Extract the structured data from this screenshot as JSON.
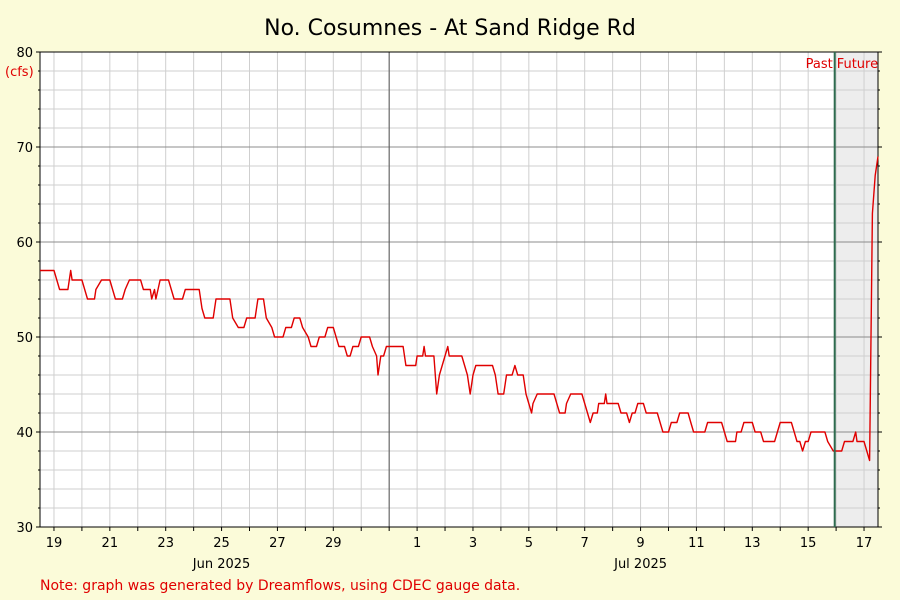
{
  "chart_data": {
    "type": "line",
    "title": "No. Cosumnes - At Sand Ridge Rd",
    "ylabel": "(cfs)",
    "ylim": [
      30,
      80
    ],
    "yticks": [
      "30",
      "40",
      "50",
      "60",
      "70",
      "80"
    ],
    "xlim": [
      18.5,
      48.5
    ],
    "x_day_ticks": [
      {
        "x": 19,
        "label": "19"
      },
      {
        "x": 21,
        "label": "21"
      },
      {
        "x": 23,
        "label": "23"
      },
      {
        "x": 25,
        "label": "25"
      },
      {
        "x": 27,
        "label": "27"
      },
      {
        "x": 29,
        "label": "29"
      },
      {
        "x": 32,
        "label": "1"
      },
      {
        "x": 34,
        "label": "3"
      },
      {
        "x": 36,
        "label": "5"
      },
      {
        "x": 38,
        "label": "7"
      },
      {
        "x": 40,
        "label": "9"
      },
      {
        "x": 42,
        "label": "11"
      },
      {
        "x": 44,
        "label": "13"
      },
      {
        "x": 46,
        "label": "15"
      },
      {
        "x": 48,
        "label": "17"
      }
    ],
    "month_labels": [
      {
        "x": 25,
        "label": "Jun 2025"
      },
      {
        "x": 40,
        "label": "Jul 2025"
      }
    ],
    "month_divider_x": 31,
    "now_x": 46.95,
    "past_label": "Past",
    "future_label": "Future",
    "grid": true,
    "series": [
      {
        "color": "#e00000",
        "points": [
          [
            18.5,
            57
          ],
          [
            19.0,
            57
          ],
          [
            19.1,
            56
          ],
          [
            19.2,
            55
          ],
          [
            19.5,
            55
          ],
          [
            19.55,
            56
          ],
          [
            19.6,
            57
          ],
          [
            19.65,
            56
          ],
          [
            20.0,
            56
          ],
          [
            20.1,
            55
          ],
          [
            20.2,
            54
          ],
          [
            20.45,
            54
          ],
          [
            20.5,
            55
          ],
          [
            20.7,
            56
          ],
          [
            21.0,
            56
          ],
          [
            21.1,
            55
          ],
          [
            21.2,
            54
          ],
          [
            21.45,
            54
          ],
          [
            21.55,
            55
          ],
          [
            21.7,
            56
          ],
          [
            22.1,
            56
          ],
          [
            22.2,
            55
          ],
          [
            22.45,
            55
          ],
          [
            22.5,
            54
          ],
          [
            22.6,
            55
          ],
          [
            22.65,
            54
          ],
          [
            22.8,
            56
          ],
          [
            23.1,
            56
          ],
          [
            23.2,
            55
          ],
          [
            23.3,
            54
          ],
          [
            23.6,
            54
          ],
          [
            23.7,
            55
          ],
          [
            24.2,
            55
          ],
          [
            24.3,
            53
          ],
          [
            24.4,
            52
          ],
          [
            24.7,
            52
          ],
          [
            24.8,
            54
          ],
          [
            25.3,
            54
          ],
          [
            25.4,
            52
          ],
          [
            25.6,
            51
          ],
          [
            25.8,
            51
          ],
          [
            25.9,
            52
          ],
          [
            26.2,
            52
          ],
          [
            26.3,
            54
          ],
          [
            26.5,
            54
          ],
          [
            26.6,
            52
          ],
          [
            26.8,
            51
          ],
          [
            26.9,
            50
          ],
          [
            27.2,
            50
          ],
          [
            27.3,
            51
          ],
          [
            27.5,
            51
          ],
          [
            27.6,
            52
          ],
          [
            27.8,
            52
          ],
          [
            27.9,
            51
          ],
          [
            28.1,
            50
          ],
          [
            28.2,
            49
          ],
          [
            28.4,
            49
          ],
          [
            28.5,
            50
          ],
          [
            28.7,
            50
          ],
          [
            28.8,
            51
          ],
          [
            29.0,
            51
          ],
          [
            29.1,
            50
          ],
          [
            29.2,
            49
          ],
          [
            29.4,
            49
          ],
          [
            29.5,
            48
          ],
          [
            29.6,
            48
          ],
          [
            29.7,
            49
          ],
          [
            29.9,
            49
          ],
          [
            30.0,
            50
          ],
          [
            30.3,
            50
          ],
          [
            30.4,
            49
          ],
          [
            30.55,
            48
          ],
          [
            30.6,
            46
          ],
          [
            30.7,
            48
          ],
          [
            30.8,
            48
          ],
          [
            30.9,
            49
          ],
          [
            31.5,
            49
          ],
          [
            31.55,
            48
          ],
          [
            31.6,
            47
          ],
          [
            31.95,
            47
          ],
          [
            32.0,
            48
          ],
          [
            32.2,
            48
          ],
          [
            32.25,
            49
          ],
          [
            32.3,
            48
          ],
          [
            32.6,
            48
          ],
          [
            32.7,
            44
          ],
          [
            32.8,
            46
          ],
          [
            32.9,
            47
          ],
          [
            33.0,
            48
          ],
          [
            33.1,
            49
          ],
          [
            33.15,
            48
          ],
          [
            33.6,
            48
          ],
          [
            33.7,
            47
          ],
          [
            33.8,
            46
          ],
          [
            33.9,
            44
          ],
          [
            34.0,
            46
          ],
          [
            34.1,
            47
          ],
          [
            34.7,
            47
          ],
          [
            34.8,
            46
          ],
          [
            34.9,
            44
          ],
          [
            35.1,
            44
          ],
          [
            35.2,
            46
          ],
          [
            35.4,
            46
          ],
          [
            35.5,
            47
          ],
          [
            35.6,
            46
          ],
          [
            35.8,
            46
          ],
          [
            35.9,
            44
          ],
          [
            36.0,
            43
          ],
          [
            36.1,
            42
          ],
          [
            36.15,
            43
          ],
          [
            36.3,
            44
          ],
          [
            36.9,
            44
          ],
          [
            37.0,
            43
          ],
          [
            37.1,
            42
          ],
          [
            37.3,
            42
          ],
          [
            37.35,
            43
          ],
          [
            37.5,
            44
          ],
          [
            37.9,
            44
          ],
          [
            38.0,
            43
          ],
          [
            38.1,
            42
          ],
          [
            38.2,
            41
          ],
          [
            38.3,
            42
          ],
          [
            38.45,
            42
          ],
          [
            38.5,
            43
          ],
          [
            38.7,
            43
          ],
          [
            38.75,
            44
          ],
          [
            38.8,
            43
          ],
          [
            39.2,
            43
          ],
          [
            39.3,
            42
          ],
          [
            39.5,
            42
          ],
          [
            39.6,
            41
          ],
          [
            39.7,
            42
          ],
          [
            39.8,
            42
          ],
          [
            39.9,
            43
          ],
          [
            40.1,
            43
          ],
          [
            40.2,
            42
          ],
          [
            40.6,
            42
          ],
          [
            40.7,
            41
          ],
          [
            40.8,
            40
          ],
          [
            41.0,
            40
          ],
          [
            41.1,
            41
          ],
          [
            41.3,
            41
          ],
          [
            41.4,
            42
          ],
          [
            41.7,
            42
          ],
          [
            41.8,
            41
          ],
          [
            41.9,
            40
          ],
          [
            42.3,
            40
          ],
          [
            42.4,
            41
          ],
          [
            42.9,
            41
          ],
          [
            43.0,
            40
          ],
          [
            43.1,
            39
          ],
          [
            43.4,
            39
          ],
          [
            43.45,
            40
          ],
          [
            43.6,
            40
          ],
          [
            43.7,
            41
          ],
          [
            44.0,
            41
          ],
          [
            44.1,
            40
          ],
          [
            44.3,
            40
          ],
          [
            44.4,
            39
          ],
          [
            44.8,
            39
          ],
          [
            44.9,
            40
          ],
          [
            45.0,
            41
          ],
          [
            45.4,
            41
          ],
          [
            45.5,
            40
          ],
          [
            45.6,
            39
          ],
          [
            45.7,
            39
          ],
          [
            45.8,
            38
          ],
          [
            45.9,
            39
          ],
          [
            46.0,
            39
          ],
          [
            46.1,
            40
          ],
          [
            46.6,
            40
          ],
          [
            46.7,
            39
          ],
          [
            46.9,
            38
          ],
          [
            47.2,
            38
          ],
          [
            47.3,
            39
          ],
          [
            47.6,
            39
          ],
          [
            47.7,
            40
          ],
          [
            47.75,
            39
          ],
          [
            48.0,
            39
          ],
          [
            48.1,
            38
          ],
          [
            48.2,
            37
          ],
          [
            48.3,
            63
          ],
          [
            48.35,
            65
          ],
          [
            48.4,
            67
          ],
          [
            48.5,
            69
          ]
        ]
      }
    ],
    "note": "Note: graph was generated by Dreamflows, using CDEC gauge data."
  }
}
